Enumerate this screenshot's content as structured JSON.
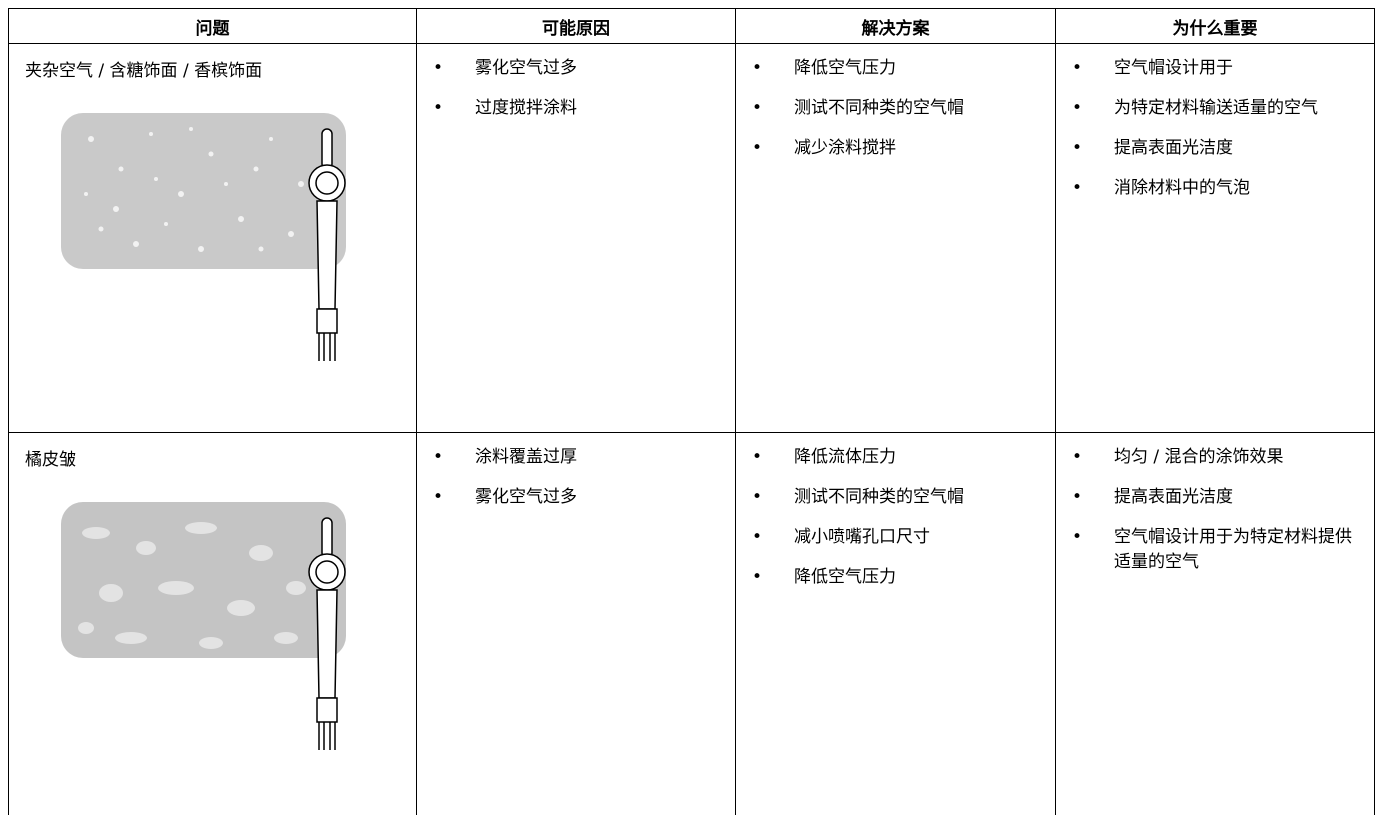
{
  "table": {
    "header": [
      "问题",
      "可能原因",
      "解决方案",
      "为什么重要"
    ],
    "rows": [
      {
        "problem": "夹杂空气 / 含糖饰面 / 香槟饰面",
        "causes": [
          "雾化空气过多",
          "过度搅拌涂料"
        ],
        "solutions": [
          "降低空气压力",
          "测试不同种类的空气帽",
          "减少涂料搅拌"
        ],
        "reasons": [
          "空气帽设计用于",
          "为特定材料输送适量的空气",
          "提高表面光洁度",
          "消除材料中的气泡"
        ]
      },
      {
        "problem": "橘皮皱",
        "causes": [
          "涂料覆盖过厚",
          "雾化空气过多"
        ],
        "solutions": [
          "降低流体压力",
          "测试不同种类的空气帽",
          "减小喷嘴孔口尺寸",
          "降低空气压力"
        ],
        "reasons": [
          "均匀 / 混合的涂饰效果",
          "提高表面光洁度",
          "空气帽设计用于为特定材料提供适量的空气"
        ]
      }
    ]
  }
}
